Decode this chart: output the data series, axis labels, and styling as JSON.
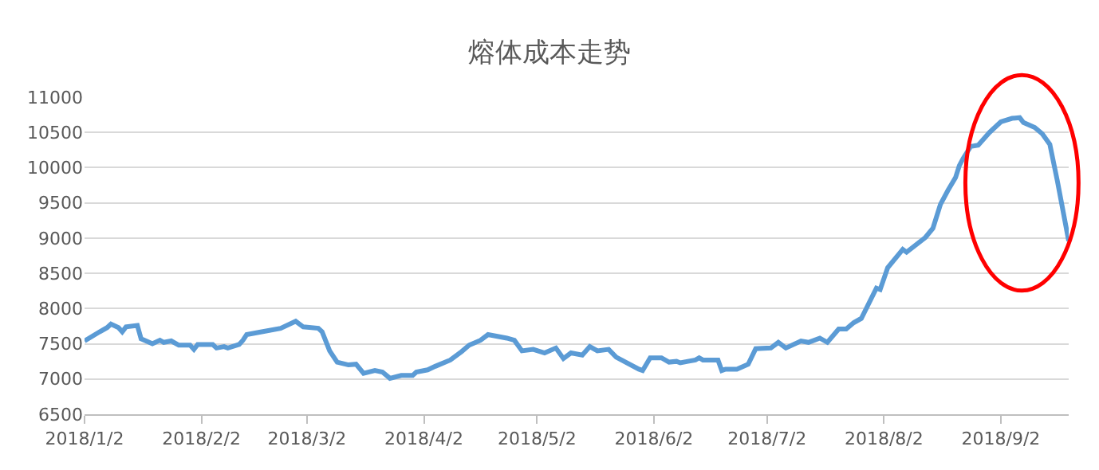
{
  "chart_data": {
    "type": "line",
    "title": "熔体成本走势",
    "x": [
      "2018-01-02",
      "2018-01-06",
      "2018-01-08",
      "2018-01-09",
      "2018-01-11",
      "2018-01-12",
      "2018-01-13",
      "2018-01-16",
      "2018-01-17",
      "2018-01-20",
      "2018-01-22",
      "2018-01-23",
      "2018-01-25",
      "2018-01-27",
      "2018-01-30",
      "2018-01-31",
      "2018-02-01",
      "2018-02-05",
      "2018-02-06",
      "2018-02-08",
      "2018-02-09",
      "2018-02-12",
      "2018-02-13",
      "2018-02-14",
      "2018-02-18",
      "2018-02-23",
      "2018-02-27",
      "2018-03-01",
      "2018-03-05",
      "2018-03-06",
      "2018-03-08",
      "2018-03-10",
      "2018-03-13",
      "2018-03-15",
      "2018-03-17",
      "2018-03-20",
      "2018-03-22",
      "2018-03-24",
      "2018-03-27",
      "2018-03-30",
      "2018-03-31",
      "2018-04-03",
      "2018-04-05",
      "2018-04-09",
      "2018-04-12",
      "2018-04-14",
      "2018-04-17",
      "2018-04-19",
      "2018-04-24",
      "2018-04-26",
      "2018-04-28",
      "2018-05-01",
      "2018-05-04",
      "2018-05-07",
      "2018-05-09",
      "2018-05-11",
      "2018-05-14",
      "2018-05-16",
      "2018-05-18",
      "2018-05-21",
      "2018-05-23",
      "2018-05-29",
      "2018-05-30",
      "2018-06-01",
      "2018-06-04",
      "2018-06-06",
      "2018-06-08",
      "2018-06-09",
      "2018-06-11",
      "2018-06-13",
      "2018-06-14",
      "2018-06-15",
      "2018-06-19",
      "2018-06-20",
      "2018-06-21",
      "2018-06-24",
      "2018-06-27",
      "2018-06-29",
      "2018-07-03",
      "2018-07-05",
      "2018-07-07",
      "2018-07-11",
      "2018-07-13",
      "2018-07-16",
      "2018-07-18",
      "2018-07-21",
      "2018-07-23",
      "2018-07-25",
      "2018-07-27",
      "2018-07-31",
      "2018-08-01",
      "2018-08-03",
      "2018-08-07",
      "2018-08-08",
      "2018-08-13",
      "2018-08-15",
      "2018-08-17",
      "2018-08-19",
      "2018-08-21",
      "2018-08-22",
      "2018-08-23",
      "2018-08-25",
      "2018-08-27",
      "2018-08-30",
      "2018-09-02",
      "2018-09-05",
      "2018-09-07",
      "2018-09-08",
      "2018-09-11",
      "2018-09-13",
      "2018-09-15",
      "2018-09-17",
      "2018-09-20"
    ],
    "series": [
      {
        "color": "#5b9bd5",
        "values": [
          7540,
          7670,
          7730,
          7780,
          7730,
          7670,
          7740,
          7760,
          7570,
          7500,
          7550,
          7520,
          7540,
          7480,
          7480,
          7420,
          7490,
          7490,
          7440,
          7460,
          7440,
          7490,
          7550,
          7630,
          7670,
          7720,
          7820,
          7740,
          7720,
          7670,
          7400,
          7240,
          7200,
          7210,
          7080,
          7120,
          7100,
          7010,
          7050,
          7050,
          7100,
          7130,
          7180,
          7270,
          7390,
          7480,
          7550,
          7630,
          7580,
          7550,
          7400,
          7420,
          7370,
          7440,
          7290,
          7370,
          7340,
          7460,
          7400,
          7420,
          7310,
          7140,
          7120,
          7300,
          7300,
          7240,
          7250,
          7230,
          7250,
          7270,
          7300,
          7270,
          7270,
          7120,
          7140,
          7140,
          7210,
          7430,
          7440,
          7520,
          7440,
          7540,
          7520,
          7580,
          7520,
          7710,
          7710,
          7800,
          7860,
          8290,
          8270,
          8580,
          8840,
          8800,
          9010,
          9140,
          9480,
          9680,
          9860,
          10030,
          10130,
          10300,
          10320,
          10500,
          10650,
          10700,
          10710,
          10640,
          10570,
          10480,
          10330,
          9810,
          8960
        ]
      }
    ],
    "xlim": [
      "2018-01-02",
      "2018-09-20"
    ],
    "xticks": [
      {
        "value": "2018-01-02",
        "label": "2018/1/2"
      },
      {
        "value": "2018-02-02",
        "label": "2018/2/2"
      },
      {
        "value": "2018-03-02",
        "label": "2018/3/2"
      },
      {
        "value": "2018-04-02",
        "label": "2018/4/2"
      },
      {
        "value": "2018-05-02",
        "label": "2018/5/2"
      },
      {
        "value": "2018-06-02",
        "label": "2018/6/2"
      },
      {
        "value": "2018-07-02",
        "label": "2018/7/2"
      },
      {
        "value": "2018-08-02",
        "label": "2018/8/2"
      },
      {
        "value": "2018-09-02",
        "label": "2018/9/2"
      }
    ],
    "ylim": [
      6500,
      11000
    ],
    "yticks": [
      6500,
      7000,
      7500,
      8000,
      8500,
      9000,
      9500,
      10000,
      10500,
      11000
    ],
    "grid": "y",
    "marker": "none",
    "line_style": "solid"
  }
}
